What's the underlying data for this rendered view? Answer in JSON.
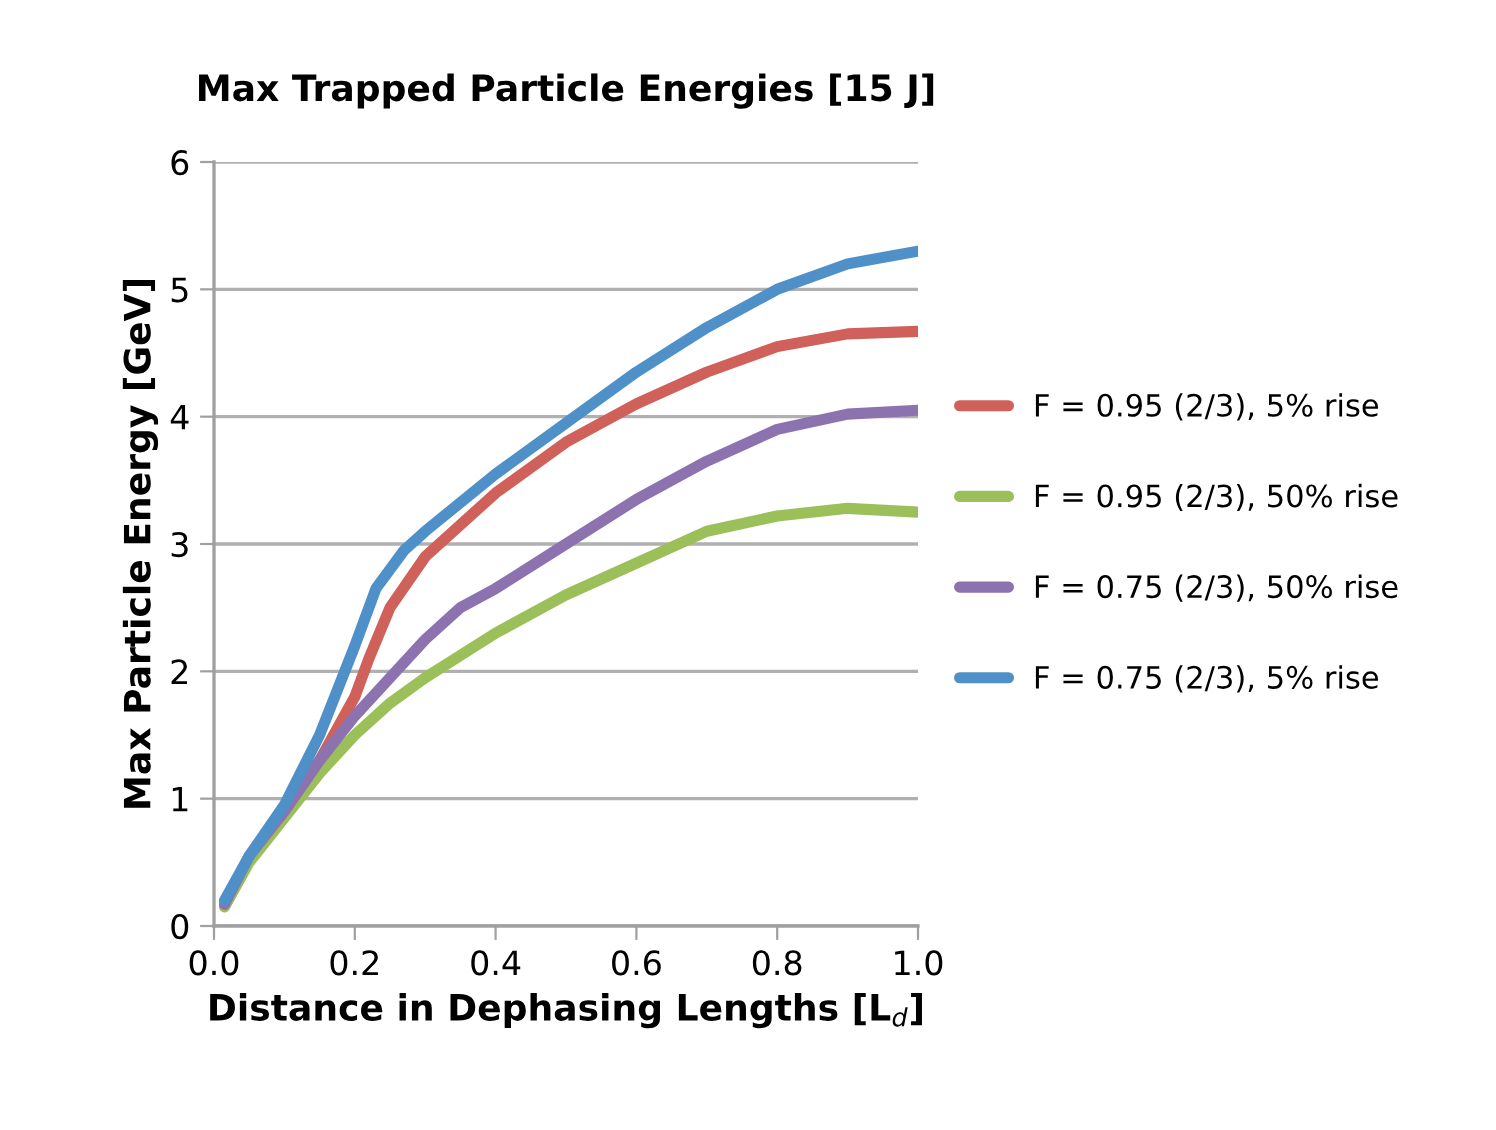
{
  "chart_data": {
    "type": "line",
    "title": "Max Trapped Particle Energies [15 J]",
    "xlabel": "Distance in Dephasing Lengths [L$_{d}$]",
    "ylabel": "Max Particle Energy [GeV]",
    "xlim": [
      0,
      1
    ],
    "xticks": [
      {
        "value": 0,
        "label": "0.0"
      },
      {
        "value": 0.2,
        "label": "0.2"
      },
      {
        "value": 0.4,
        "label": "0.4"
      },
      {
        "value": 0.6,
        "label": "0.6"
      },
      {
        "value": 0.8,
        "label": "0.8"
      },
      {
        "value": 1,
        "label": "1.0"
      }
    ],
    "ylim": [
      0,
      6
    ],
    "yticks": [
      0,
      1,
      2,
      3,
      4,
      5,
      6
    ],
    "grid": "y",
    "legend": "right",
    "marker": "none",
    "line_style": "solid",
    "series": [
      {
        "name": "F = 0.95 (2/3), 5% rise",
        "color": "#d0605a",
        "x": [
          0.1,
          0.15,
          0.2,
          0.22,
          0.25,
          0.3,
          0.4,
          0.5,
          0.6,
          0.7,
          0.8,
          0.9,
          1.0
        ],
        "values": [
          0.9,
          1.3,
          1.8,
          2.1,
          2.5,
          2.9,
          3.4,
          3.8,
          4.1,
          4.35,
          4.55,
          4.65,
          4.67
        ]
      },
      {
        "name": "F = 0.95 (2/3), 50% rise",
        "color": "#9bbf59",
        "x": [
          0.015,
          0.05,
          0.1,
          0.15,
          0.2,
          0.25,
          0.3,
          0.4,
          0.5,
          0.6,
          0.7,
          0.8,
          0.9,
          1.0
        ],
        "values": [
          0.15,
          0.5,
          0.85,
          1.2,
          1.5,
          1.75,
          1.95,
          2.3,
          2.6,
          2.85,
          3.1,
          3.22,
          3.28,
          3.25
        ]
      },
      {
        "name": "F = 0.75 (2/3), 50% rise",
        "color": "#8c73b0",
        "x": [
          0.015,
          0.05,
          0.1,
          0.15,
          0.2,
          0.25,
          0.3,
          0.35,
          0.4,
          0.5,
          0.6,
          0.7,
          0.8,
          0.9,
          1.0
        ],
        "values": [
          0.17,
          0.55,
          0.9,
          1.3,
          1.65,
          1.95,
          2.25,
          2.5,
          2.65,
          3.0,
          3.35,
          3.65,
          3.9,
          4.02,
          4.05
        ]
      },
      {
        "name": "F = 0.75 (2/3), 5% rise",
        "color": "#4f90c8",
        "x": [
          0.015,
          0.05,
          0.1,
          0.15,
          0.2,
          0.23,
          0.27,
          0.3,
          0.4,
          0.5,
          0.6,
          0.7,
          0.8,
          0.9,
          1.0
        ],
        "values": [
          0.2,
          0.55,
          0.95,
          1.5,
          2.2,
          2.65,
          2.95,
          3.1,
          3.55,
          3.95,
          4.35,
          4.7,
          5.0,
          5.2,
          5.3
        ]
      }
    ]
  }
}
